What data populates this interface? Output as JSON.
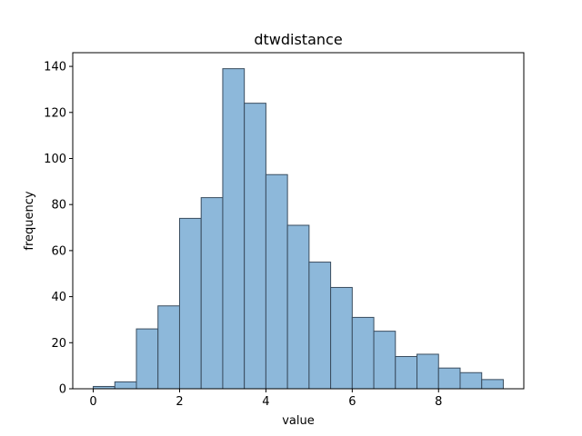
{
  "chart_data": {
    "type": "bar",
    "subtype": "histogram",
    "title": "dtwdistance",
    "xlabel": "value",
    "ylabel": "frequency",
    "xlim": [
      -0.475,
      9.975
    ],
    "ylim": [
      0,
      145.95
    ],
    "xticks": [
      0,
      2,
      4,
      6,
      8
    ],
    "yticks": [
      0,
      20,
      40,
      60,
      80,
      100,
      120,
      140
    ],
    "bin_edges": [
      0,
      0.5,
      1,
      1.5,
      2,
      2.5,
      3,
      3.5,
      4,
      4.5,
      5,
      5.5,
      6,
      6.5,
      7,
      7.5,
      8,
      8.5,
      9,
      9.5
    ],
    "values": [
      1,
      3,
      26,
      36,
      74,
      83,
      139,
      124,
      93,
      71,
      55,
      44,
      31,
      25,
      14,
      15,
      9,
      7,
      4
    ],
    "bar_color": "#8db8da",
    "edge_color": "#3a4d5f",
    "grid": false,
    "legend": "none"
  }
}
